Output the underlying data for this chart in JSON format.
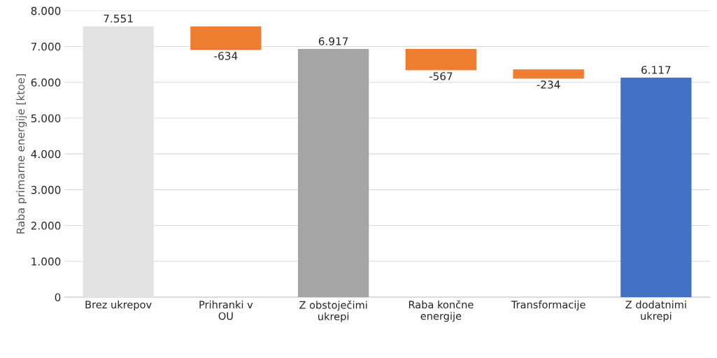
{
  "chart_data": {
    "type": "bar",
    "categories": [
      "Brez ukrepov",
      "Prihranki v\nOU",
      "Z obstoječimi\nukrepi",
      "Raba končne\nenergije",
      "Transformacije",
      "Z dodatnimi\nukrepi"
    ],
    "values": [
      7551,
      -634,
      6917,
      -567,
      -234,
      6117
    ],
    "base": [
      0,
      7551,
      0,
      6917,
      6350,
      0
    ],
    "colors": [
      "#e3e3e3",
      "#ed7d31",
      "#a5a5a5",
      "#ed7d31",
      "#ed7d31",
      "#4472c4"
    ],
    "value_labels": [
      "7.551",
      "-634",
      "6.917",
      "-567",
      "-234",
      "6.117"
    ],
    "ylabel": "Raba primarne energije [ktoe]",
    "ylim": [
      0,
      8000
    ],
    "yticks": [
      {
        "value": 0,
        "label": "0"
      },
      {
        "value": 1000,
        "label": "1.000"
      },
      {
        "value": 2000,
        "label": "2.000"
      },
      {
        "value": 3000,
        "label": "3.000"
      },
      {
        "value": 4000,
        "label": "4.000"
      },
      {
        "value": 5000,
        "label": "5.000"
      },
      {
        "value": 6000,
        "label": "6.000"
      },
      {
        "value": 7000,
        "label": "7.000"
      },
      {
        "value": 8000,
        "label": "8.000"
      }
    ],
    "grid": "y"
  }
}
